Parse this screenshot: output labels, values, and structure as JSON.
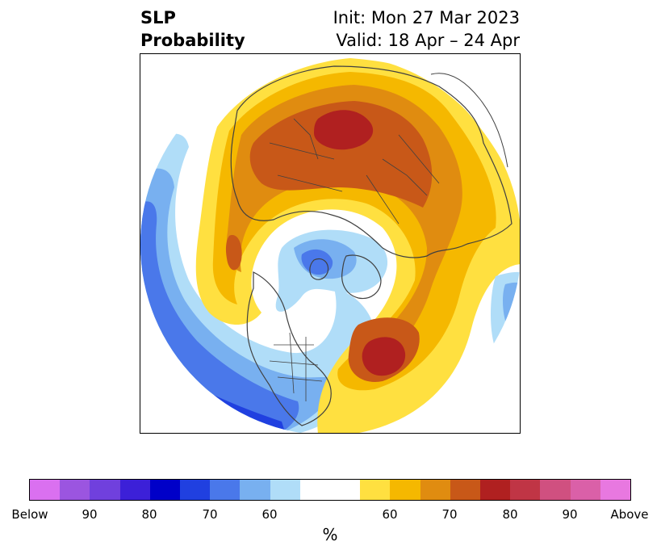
{
  "title": {
    "left_line1": "SLP",
    "left_line2": "Probability",
    "right_line1": "Init: Mon 27 Mar 2023",
    "right_line2": "Valid: 18 Apr – 24 Apr"
  },
  "colors": {
    "below": [
      "#da70f0",
      "#9b55e0",
      "#7040dd",
      "#3c20d8",
      "#0000c8",
      "#2040e0",
      "#4a78ea",
      "#78b0f0",
      "#b0ddf8"
    ],
    "neutral": "#ffffff",
    "above": [
      "#ffe040",
      "#f5b800",
      "#e08c10",
      "#c85818",
      "#b02020",
      "#c03545",
      "#d05080",
      "#da60a8",
      "#e878e0"
    ]
  },
  "colorbar": {
    "ticks": [
      "Below",
      "90",
      "80",
      "70",
      "60",
      "60",
      "70",
      "80",
      "90",
      "Above"
    ],
    "unit": "%"
  }
}
